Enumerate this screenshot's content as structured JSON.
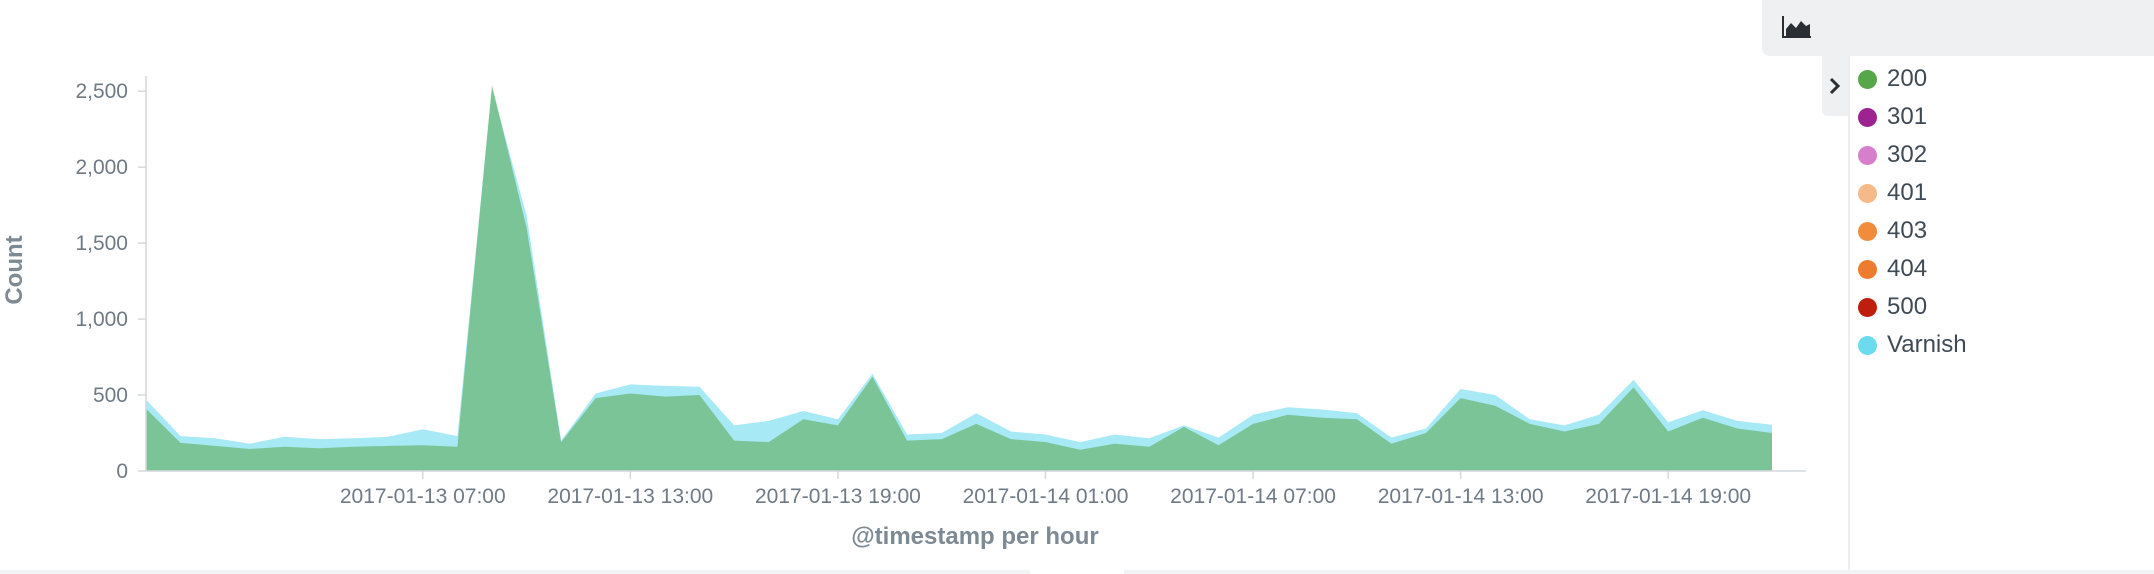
{
  "legend": {
    "header_icon": "area-chart-icon",
    "toggle_icon": "chevron-right-icon",
    "items": [
      {
        "label": "200",
        "color": "#57a64a"
      },
      {
        "label": "301",
        "color": "#9c2390"
      },
      {
        "label": "302",
        "color": "#d67fcd"
      },
      {
        "label": "401",
        "color": "#f5b98a"
      },
      {
        "label": "403",
        "color": "#f28c3d"
      },
      {
        "label": "404",
        "color": "#ef7b2e"
      },
      {
        "label": "500",
        "color": "#c01e0c"
      },
      {
        "label": "Varnish",
        "color": "#6ddbee"
      }
    ]
  },
  "chart_data": {
    "type": "area",
    "xlabel": "@timestamp per hour",
    "ylabel": "Count",
    "x_tick_labels": [
      "2017-01-13 07:00",
      "2017-01-13 13:00",
      "2017-01-13 19:00",
      "2017-01-14 01:00",
      "2017-01-14 07:00",
      "2017-01-14 13:00",
      "2017-01-14 19:00"
    ],
    "y_tick_labels": [
      "0",
      "500",
      "1,000",
      "1,500",
      "2,000",
      "2,500"
    ],
    "ylim": [
      0,
      2600
    ],
    "grid": false,
    "legend_position": "right",
    "series": [
      {
        "name": "200",
        "color": "#57a64a",
        "values": [
          410,
          185,
          165,
          145,
          160,
          150,
          160,
          165,
          170,
          160,
          2540,
          1600,
          190,
          480,
          510,
          490,
          500,
          200,
          190,
          340,
          300,
          620,
          200,
          210,
          310,
          210,
          190,
          140,
          180,
          160,
          290,
          170,
          310,
          370,
          350,
          340,
          180,
          250,
          480,
          430,
          310,
          260,
          310,
          550,
          260,
          350,
          280,
          250
        ]
      },
      {
        "name": "Varnish",
        "color": "#6ddbee",
        "values": [
          470,
          230,
          215,
          180,
          225,
          210,
          215,
          225,
          275,
          230,
          2520,
          1680,
          200,
          510,
          570,
          560,
          555,
          300,
          330,
          395,
          340,
          640,
          240,
          250,
          380,
          260,
          240,
          190,
          240,
          215,
          300,
          220,
          370,
          420,
          405,
          380,
          220,
          280,
          540,
          500,
          340,
          300,
          370,
          600,
          320,
          400,
          330,
          305
        ]
      }
    ]
  }
}
